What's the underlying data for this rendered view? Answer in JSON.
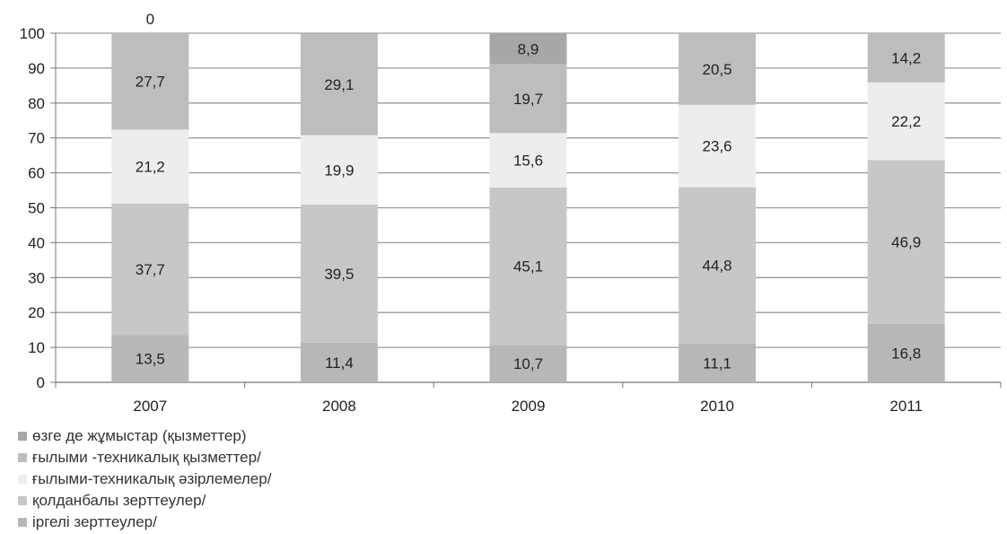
{
  "chart_data": {
    "type": "bar",
    "stacked": true,
    "categories": [
      "2007",
      "2008",
      "2009",
      "2010",
      "2011"
    ],
    "ylim": [
      0,
      100
    ],
    "yticks": [
      0,
      10,
      20,
      30,
      40,
      50,
      60,
      70,
      80,
      90,
      100
    ],
    "grid": true,
    "legend_position": "bottom-left",
    "series": [
      {
        "name": "іргелі зерттеулер/",
        "color": "#b7b7b7",
        "values": [
          13.5,
          11.4,
          10.7,
          11.1,
          16.8
        ],
        "labels": [
          "13,5",
          "11,4",
          "10,7",
          "11,1",
          "16,8"
        ]
      },
      {
        "name": "қолданбалы зерттеулер/",
        "color": "#c7c7c7",
        "values": [
          37.7,
          39.5,
          45.1,
          44.8,
          46.9
        ],
        "labels": [
          "37,7",
          "39,5",
          "45,1",
          "44,8",
          "46,9"
        ]
      },
      {
        "name": "ғылыми-техникалық әзірлемелер/",
        "color": "#ededed",
        "values": [
          21.2,
          19.9,
          15.6,
          23.6,
          22.2
        ],
        "labels": [
          "21,2",
          "19,9",
          "15,6",
          "23,6",
          "22,2"
        ]
      },
      {
        "name": "ғылыми -техникалық  қызметтер/",
        "color": "#bdbdbd",
        "values": [
          27.7,
          29.1,
          19.7,
          20.5,
          14.2
        ],
        "labels": [
          "27,7",
          "29,1",
          "19,7",
          "20,5",
          "14,2"
        ]
      },
      {
        "name": "өзге де жұмыстар (қызметтер)",
        "color": "#a7a7a7",
        "values": [
          0,
          0,
          8.9,
          0,
          0
        ],
        "labels": [
          "0",
          "",
          "8,9",
          "",
          ""
        ]
      }
    ]
  }
}
